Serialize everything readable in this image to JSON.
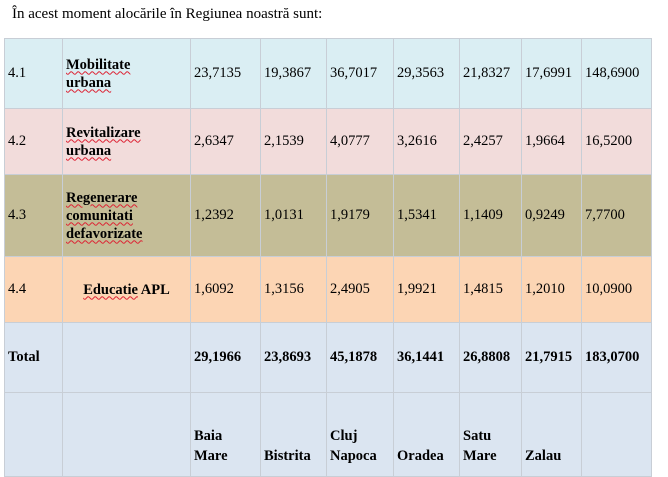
{
  "intro": "În acest moment alocările în Regiunea noastră sunt:",
  "rows": [
    {
      "code": "4.1",
      "name_lines": [
        "Mobilitate",
        "urbana"
      ],
      "values": [
        "23,7135",
        "19,3867",
        "36,7017",
        "29,3563",
        "21,8327",
        "17,6991",
        "148,6900"
      ],
      "color": "#daeef3"
    },
    {
      "code": "4.2",
      "name_lines": [
        "Revitalizare",
        "urbana"
      ],
      "values": [
        "2,6347",
        "2,1539",
        "4,0777",
        "3,2616",
        "2,4257",
        "1,9664",
        "16,5200"
      ],
      "color": "#f2dcdb"
    },
    {
      "code": "4.3",
      "name_lines": [
        "Regenerare",
        "comunitati",
        "defavorizate"
      ],
      "values": [
        "1,2392",
        "1,0131",
        "1,9179",
        "1,5341",
        "1,1409",
        "0,9249",
        "7,7700"
      ],
      "color": "#c4bd97"
    },
    {
      "code": "4.4",
      "name_lines": [
        "Educatie APL"
      ],
      "values": [
        "1,6092",
        "1,3156",
        "2,4905",
        "1,9921",
        "1,4815",
        "1,2010",
        "10,0900"
      ],
      "color": "#fcd5b4"
    }
  ],
  "total": {
    "label": "Total",
    "values": [
      "29,1966",
      "23,8693",
      "45,1878",
      "36,1441",
      "26,8808",
      "21,7915",
      "183,0700"
    ]
  },
  "cities": [
    [
      "Baia",
      "Mare"
    ],
    [
      "Bistrita"
    ],
    [
      "Cluj",
      "Napoca"
    ],
    [
      "Oradea"
    ],
    [
      "Satu",
      "Mare"
    ],
    [
      "Zalau"
    ],
    []
  ],
  "colors": {
    "border": "#c8ced6",
    "row_bg_default": "#dbe5f1",
    "spell_underline": "#d23"
  }
}
